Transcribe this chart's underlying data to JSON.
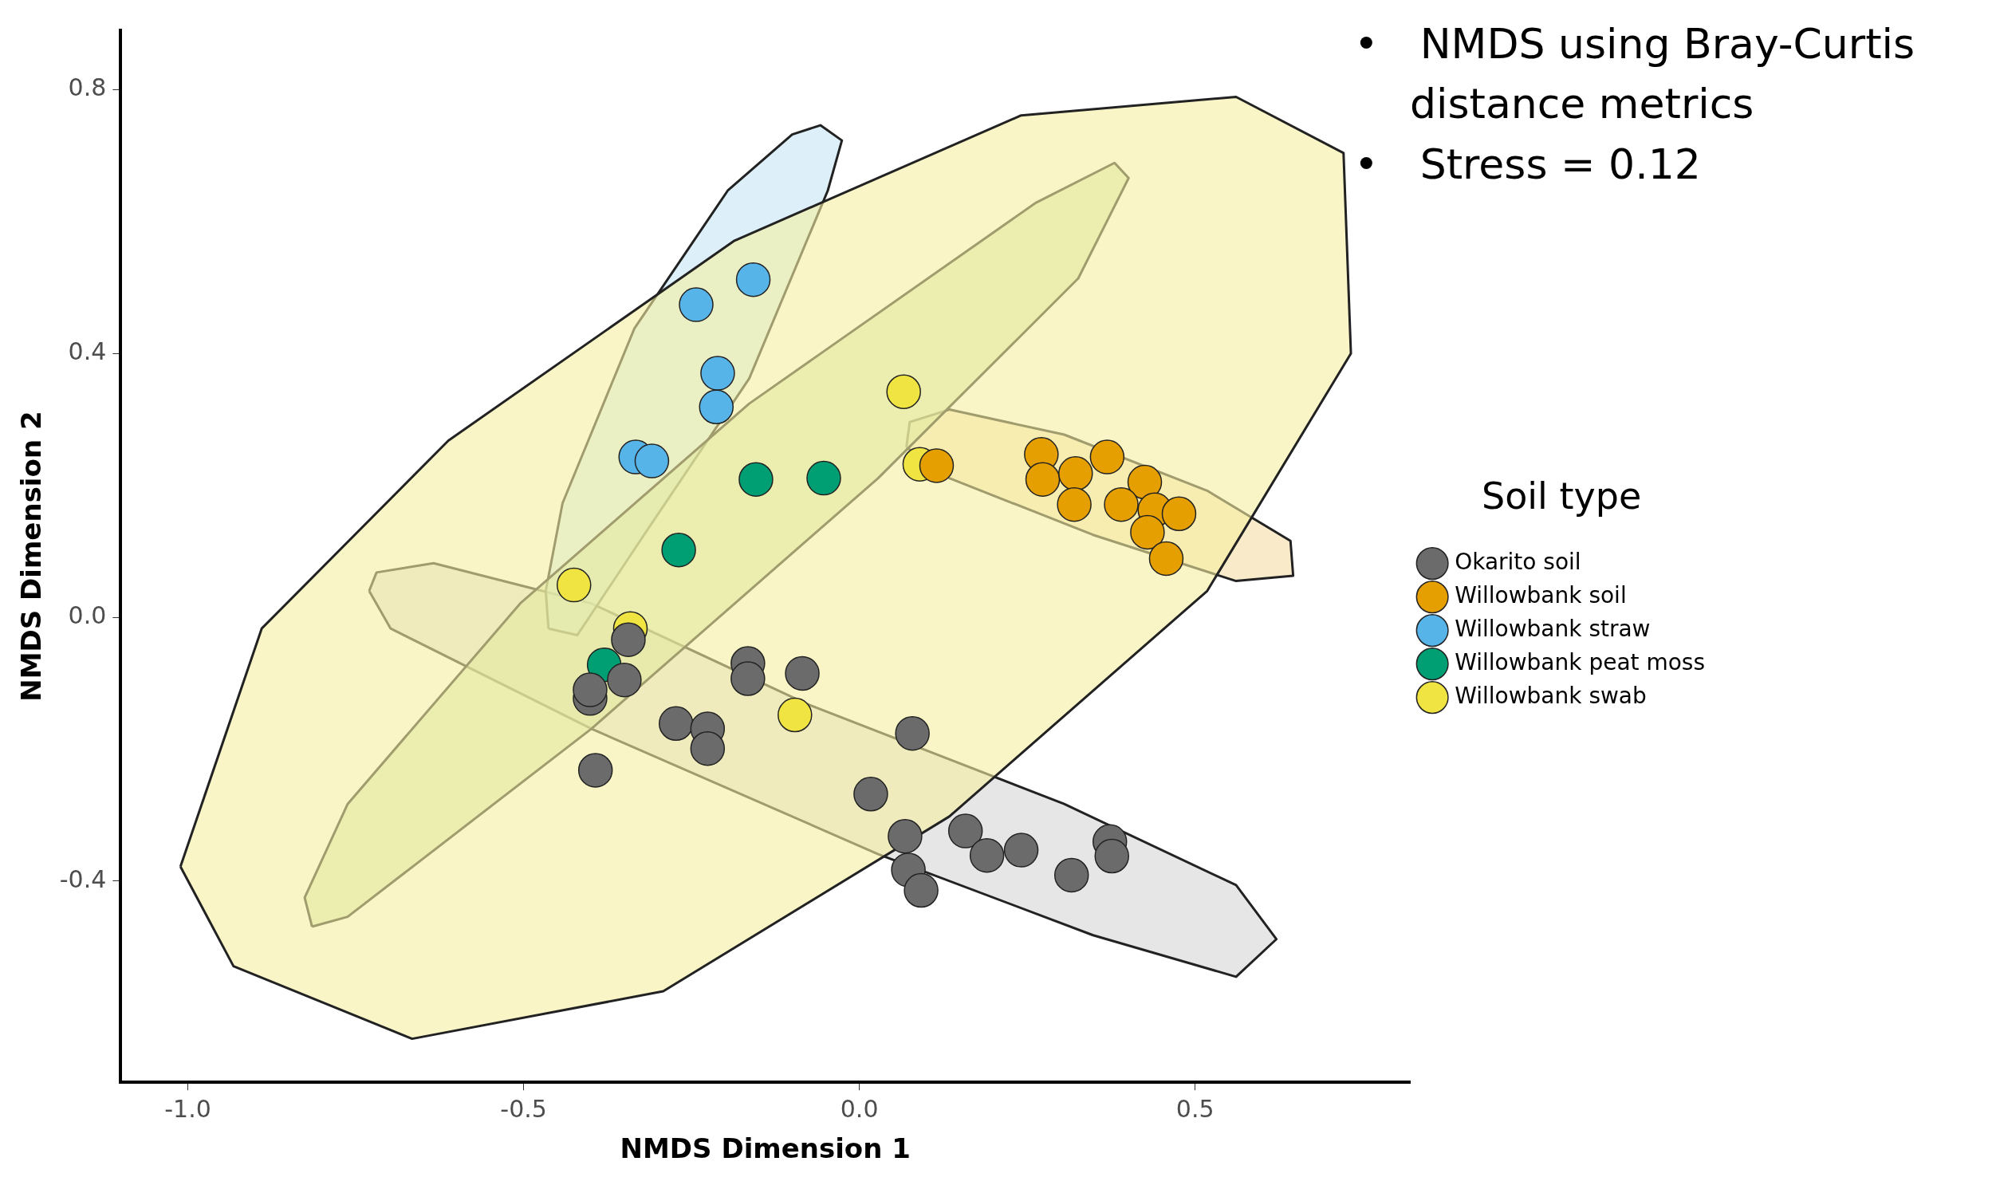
{
  "chart_data": {
    "type": "scatter",
    "xlabel": "NMDS Dimension 1",
    "ylabel": "NMDS Dimension 2",
    "legend_title": "Soil type",
    "legend": "right",
    "grid": false,
    "annotations": [
      "• NMDS using Bray-Curtis distance metrics",
      "• Stress = 0.12"
    ],
    "xlim": [
      -1.1,
      0.82
    ],
    "ylim": [
      -0.705,
      0.89
    ],
    "xticks": [
      {
        "value": -1,
        "label": "-1.0"
      },
      -0.5,
      {
        "value": 0,
        "label": "0.0"
      },
      0.5
    ],
    "yticks": [
      -0.4,
      {
        "value": 0,
        "label": "0.0"
      },
      0.4,
      0.8
    ],
    "series": [
      {
        "type": "area",
        "color": "#f5efa0",
        "x": [
          -1.011,
          -0.932,
          -0.666,
          -0.292,
          0.134,
          0.518,
          0.732,
          0.721,
          0.561,
          0.241,
          -0.186,
          -0.612,
          -0.89,
          -1.011
        ],
        "values": [
          -0.378,
          -0.529,
          -0.639,
          -0.567,
          -0.302,
          0.04,
          0.4,
          0.704,
          0.789,
          0.761,
          0.571,
          0.268,
          -0.017,
          -0.378
        ]
      },
      {
        "type": "area",
        "color": "#c8e3a3",
        "x": [
          -0.815,
          -0.762,
          -0.399,
          0.028,
          0.326,
          0.401,
          0.38,
          0.262,
          -0.164,
          -0.505,
          -0.762,
          -0.826,
          -0.815
        ],
        "values": [
          -0.469,
          -0.454,
          -0.169,
          0.211,
          0.514,
          0.666,
          0.689,
          0.628,
          0.324,
          0.021,
          -0.283,
          -0.425,
          -0.469
        ]
      },
      {
        "type": "area",
        "color": "#c7e4f5",
        "x": [
          -0.463,
          -0.42,
          -0.314,
          -0.164,
          -0.047,
          -0.026,
          -0.058,
          -0.1,
          -0.196,
          -0.335,
          -0.442,
          -0.467,
          -0.463
        ],
        "values": [
          -0.017,
          -0.027,
          0.135,
          0.362,
          0.647,
          0.723,
          0.746,
          0.732,
          0.647,
          0.438,
          0.173,
          0.04,
          -0.017
        ]
      },
      {
        "type": "area",
        "color": "#f5dca6",
        "x": [
          0.07,
          0.134,
          0.348,
          0.561,
          0.646,
          0.642,
          0.518,
          0.305,
          0.134,
          0.075,
          0.07
        ],
        "values": [
          0.258,
          0.211,
          0.125,
          0.055,
          0.063,
          0.116,
          0.192,
          0.277,
          0.315,
          0.296,
          0.258
        ]
      },
      {
        "type": "area",
        "color": "#d6d6d6",
        "x": [
          -0.73,
          -0.698,
          -0.399,
          0.028,
          0.348,
          0.561,
          0.621,
          0.561,
          0.305,
          -0.079,
          -0.399,
          -0.634,
          -0.719,
          -0.73
        ],
        "values": [
          0.04,
          -0.017,
          -0.169,
          -0.359,
          -0.482,
          -0.545,
          -0.488,
          -0.406,
          -0.283,
          -0.131,
          0.021,
          0.082,
          0.068,
          0.04
        ]
      },
      {
        "name": "Okarito soil",
        "marker": "circle",
        "color": "#6b6b6b",
        "x": [
          -0.401,
          -0.401,
          -0.344,
          -0.35,
          -0.393,
          -0.273,
          -0.226,
          -0.226,
          -0.166,
          -0.166,
          -0.085,
          0.017,
          0.079,
          0.068,
          0.073,
          0.092,
          0.158,
          0.19,
          0.241,
          0.316,
          0.373,
          0.376
        ],
        "values": [
          -0.123,
          -0.11,
          -0.034,
          -0.095,
          -0.232,
          -0.161,
          -0.169,
          -0.199,
          -0.07,
          -0.093,
          -0.085,
          -0.268,
          -0.176,
          -0.332,
          -0.383,
          -0.414,
          -0.324,
          -0.361,
          -0.353,
          -0.391,
          -0.34,
          -0.362
        ]
      },
      {
        "name": "Willowbank soil",
        "marker": "circle",
        "color": "#e69f00",
        "x": [
          0.115,
          0.271,
          0.273,
          0.322,
          0.369,
          0.32,
          0.425,
          0.39,
          0.44,
          0.476,
          0.429,
          0.457
        ],
        "values": [
          0.23,
          0.247,
          0.209,
          0.218,
          0.243,
          0.171,
          0.205,
          0.171,
          0.163,
          0.157,
          0.129,
          0.089
        ]
      },
      {
        "name": "Willowbank straw",
        "marker": "circle",
        "color": "#56b4e9",
        "x": [
          -0.158,
          -0.243,
          -0.211,
          -0.213,
          -0.333,
          -0.309
        ],
        "values": [
          0.512,
          0.474,
          0.37,
          0.319,
          0.243,
          0.237
        ]
      },
      {
        "name": "Willowbank peat moss",
        "marker": "circle",
        "color": "#009e73",
        "x": [
          -0.154,
          -0.053,
          -0.269,
          -0.38
        ],
        "values": [
          0.209,
          0.211,
          0.102,
          -0.072
        ]
      },
      {
        "name": "Willowbank swab",
        "marker": "circle",
        "color": "#f0e442",
        "x": [
          0.066,
          0.09,
          -0.425,
          -0.341,
          -0.096
        ],
        "values": [
          0.342,
          0.232,
          0.049,
          -0.017,
          -0.148
        ]
      }
    ]
  }
}
